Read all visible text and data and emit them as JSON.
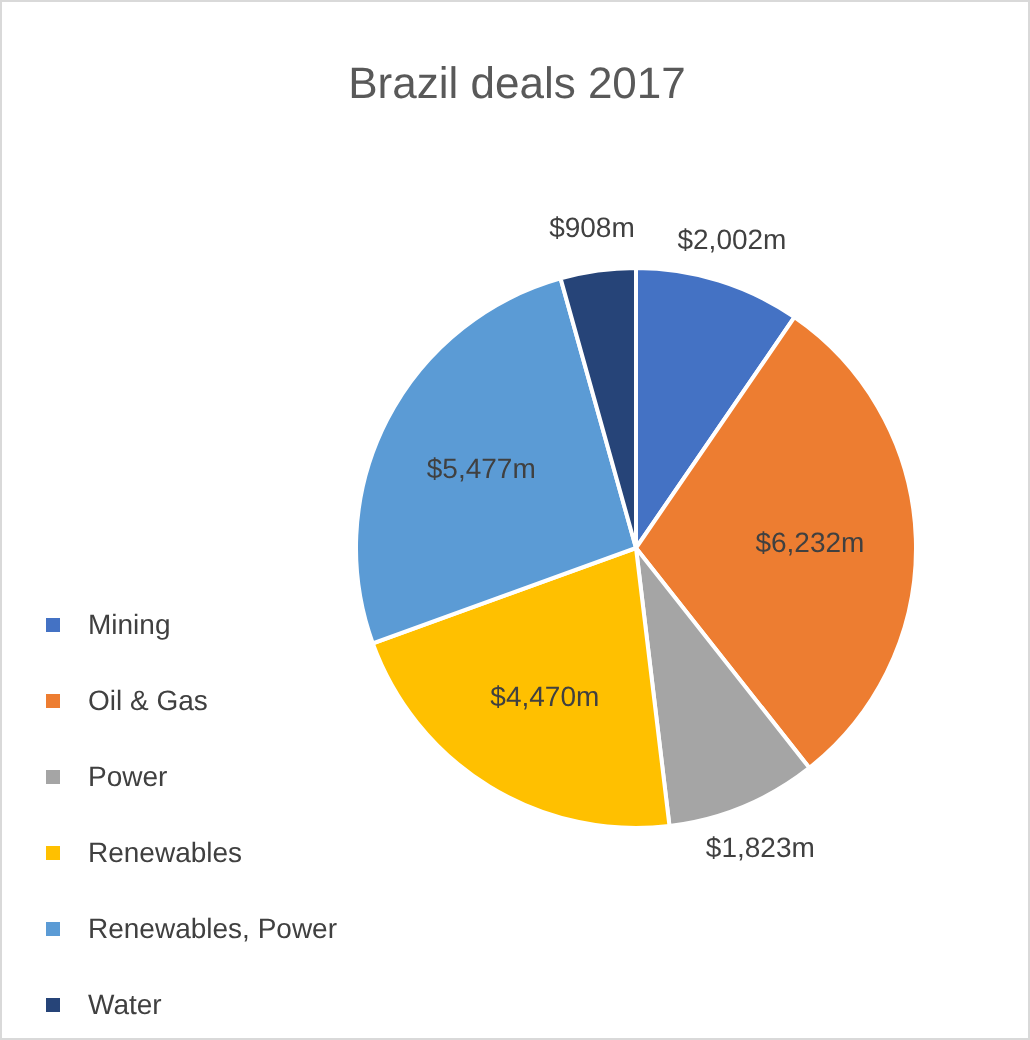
{
  "chart_data": {
    "type": "pie",
    "title": "Brazil deals 2017",
    "categories": [
      "Mining",
      "Oil & Gas",
      "Power",
      "Renewables",
      "Renewables, Power",
      "Water"
    ],
    "values": [
      2002,
      6232,
      1823,
      4470,
      5477,
      908
    ],
    "value_labels": [
      "$2,002m",
      "$6,232m",
      "$1,823m",
      "$4,470m",
      "$5,477m",
      "$908m"
    ],
    "colors": [
      "#4472c4",
      "#ed7d31",
      "#a5a5a5",
      "#ffc000",
      "#5b9bd5",
      "#264478"
    ],
    "legend": "left"
  }
}
